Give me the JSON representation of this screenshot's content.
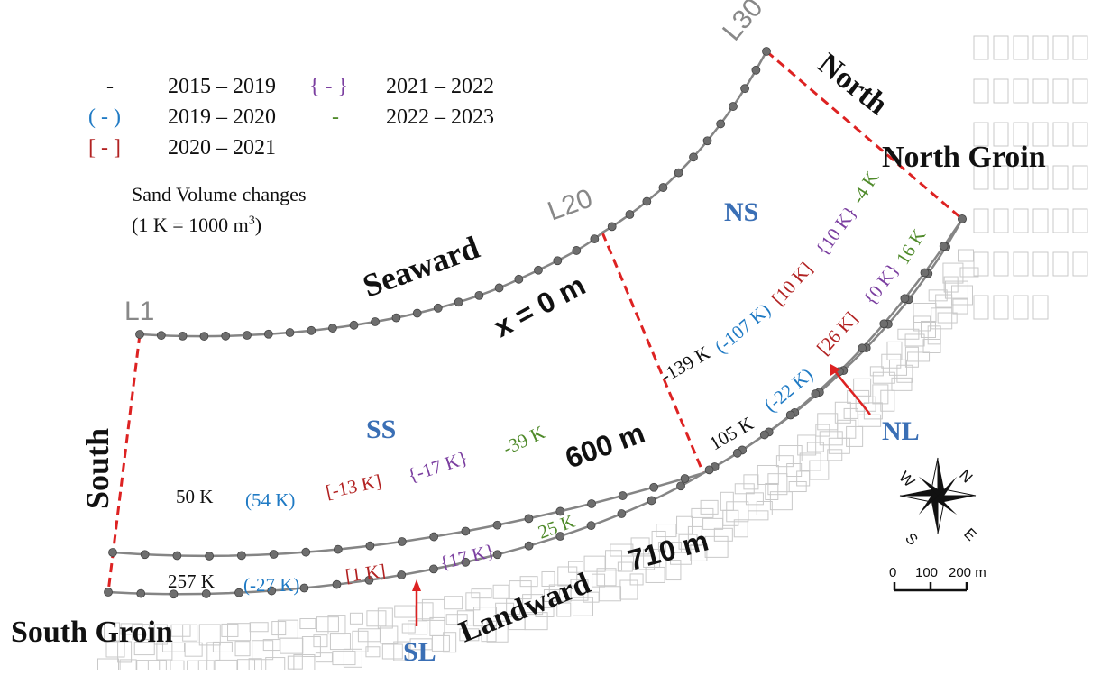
{
  "legend": {
    "periods": [
      {
        "symbol": "-",
        "label": "2015 – 2019",
        "color": "#111111"
      },
      {
        "symbol": "( - )",
        "label": "2019 – 2020",
        "color": "#1f7ac4"
      },
      {
        "symbol": "[ - ]",
        "label": "2020 – 2021",
        "color": "#b22222"
      },
      {
        "symbol": "{ - }",
        "label": "2021 – 2022",
        "color": "#7b3fa0"
      },
      {
        "symbol": "-",
        "label": "2022 – 2023",
        "color": "#4f8a2a"
      }
    ],
    "note_line1": "Sand Volume changes",
    "note_line2_prefix": "(1 K = 1000 m",
    "note_line2_sup": "3",
    "note_line2_suffix": ")"
  },
  "lines": {
    "l1": "L1",
    "l20": "L20",
    "l30": "L30"
  },
  "boundaries": {
    "north": "North",
    "south": "South",
    "seaward": "Seaward",
    "landward": "Landward",
    "north_groin": "North Groin",
    "south_groin": "South Groin"
  },
  "distances": {
    "x0": "x = 0 m",
    "d600": "600 m",
    "d710": "710 m"
  },
  "zones": {
    "ns": "NS",
    "ss": "SS",
    "nl": "NL",
    "sl": "SL"
  },
  "volumes": {
    "ss": [
      "50 K",
      "(54 K)",
      "[-13 K]",
      "{-17 K}",
      "-39 K"
    ],
    "sl": [
      "257 K",
      "(-27 K)",
      "[1 K]",
      "{17 K}",
      "25 K"
    ],
    "ns": [
      "-139 K",
      "(-107 K)",
      "[10 K]",
      "{10 K}",
      "-4 K"
    ],
    "nl": [
      "105 K",
      "(-22 K)",
      "[26 K]",
      "{0 K}",
      "16 K"
    ]
  },
  "scale_bar": {
    "labels": [
      "0",
      "100",
      "200 m"
    ]
  },
  "compass": {
    "n": "N",
    "s": "S",
    "e": "E",
    "w": "W"
  },
  "colors": {
    "boundary": "#dd2222",
    "profile_line": "#808080",
    "marker": "#6e6e6e",
    "zone_label": "#3a6fb5",
    "period_2015_2019": "#111111",
    "period_2019_2020": "#1f7ac4",
    "period_2020_2021": "#b22222",
    "period_2021_2022": "#7b3fa0",
    "period_2022_2023": "#4f8a2a"
  }
}
